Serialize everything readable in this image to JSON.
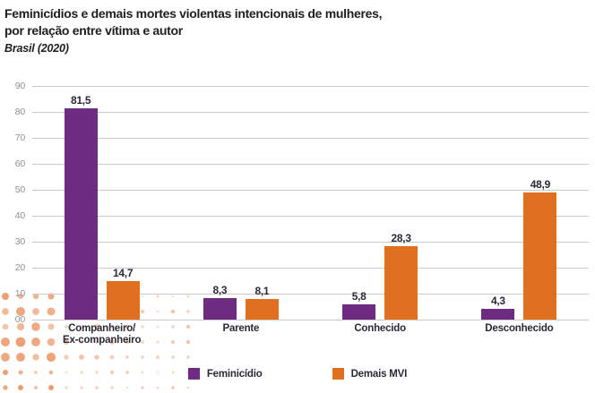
{
  "header": {
    "title_line1": "Feminicídios e demais mortes violentas intencionais de mulheres,",
    "title_line2": "por relação entre vítima e autor",
    "subtitle": "Brasil (2020)"
  },
  "chart_data": {
    "type": "bar",
    "title": "Feminicídios e demais mortes violentas intencionais de mulheres, por relação entre vítima e autor",
    "subtitle": "Brasil (2020)",
    "categories": [
      "Companheiro/\nEx-companheiro",
      "Parente",
      "Conhecido",
      "Desconhecido"
    ],
    "series": [
      {
        "name": "Feminicídio",
        "color": "#6e2b82",
        "values": [
          81.5,
          8.3,
          5.8,
          4.3
        ],
        "labels": [
          "81,5",
          "8,3",
          "5,8",
          "4,3"
        ]
      },
      {
        "name": "Demais MVI",
        "color": "#e0701f",
        "values": [
          14.7,
          8.1,
          28.3,
          48.9
        ],
        "labels": [
          "14,7",
          "8,1",
          "28,3",
          "48,9"
        ]
      }
    ],
    "xlabel": "",
    "ylabel": "",
    "ylim": [
      0,
      90
    ],
    "yticks": [
      "90",
      "80",
      "70",
      "60",
      "50",
      "40",
      "30",
      "20",
      "10",
      "00"
    ],
    "grid": true,
    "legend_position": "bottom"
  },
  "colors": {
    "gridline": "#c9c9c9",
    "axis_text": "#8f8f8f",
    "text_dark": "#2a2937",
    "title_text": "#1f1e1d",
    "dots": "#ea9a6b",
    "background": "#ffffff"
  }
}
